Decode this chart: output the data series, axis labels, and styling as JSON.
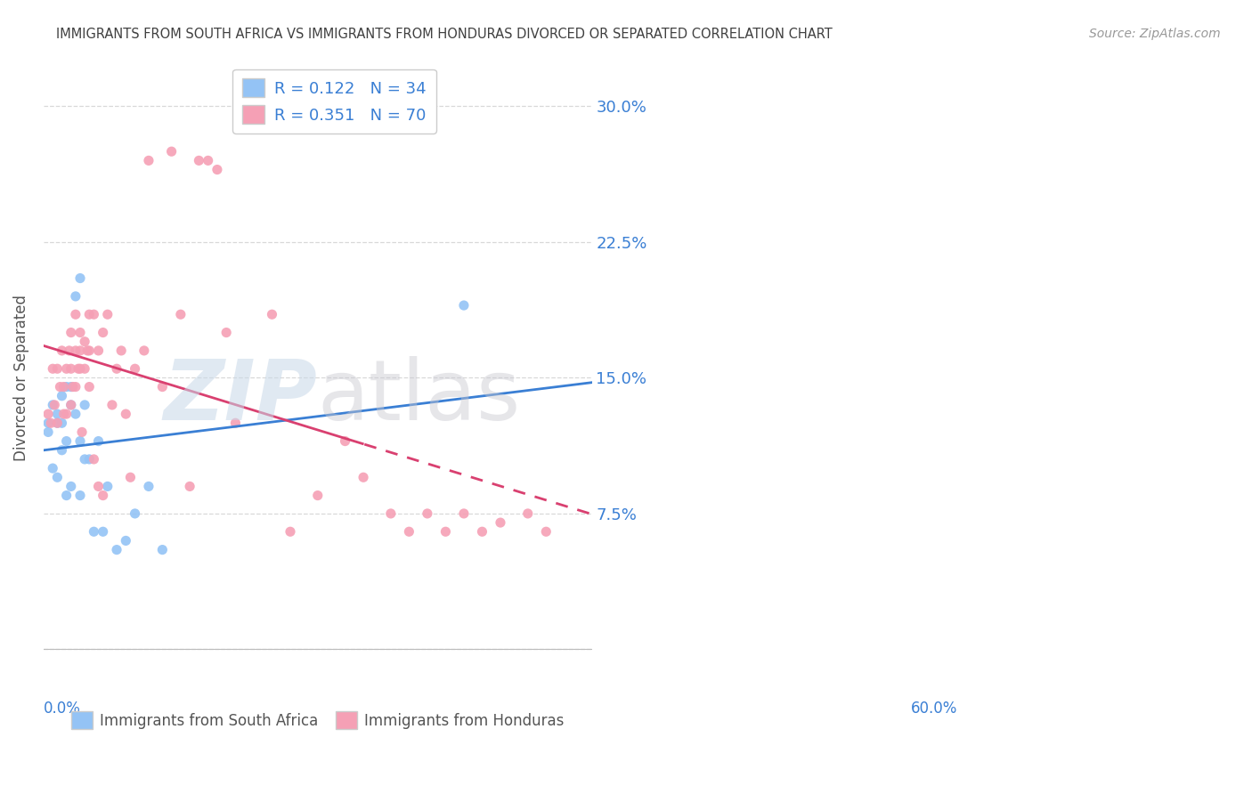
{
  "title": "IMMIGRANTS FROM SOUTH AFRICA VS IMMIGRANTS FROM HONDURAS DIVORCED OR SEPARATED CORRELATION CHART",
  "source": "Source: ZipAtlas.com",
  "ylabel": "Divorced or Separated",
  "xlim": [
    0.0,
    0.6
  ],
  "ylim": [
    -0.025,
    0.325
  ],
  "yticks": [
    0.0,
    0.075,
    0.15,
    0.225,
    0.3
  ],
  "ytick_labels": [
    "",
    "7.5%",
    "15.0%",
    "22.5%",
    "30.0%"
  ],
  "blue_R": 0.122,
  "blue_N": 34,
  "pink_R": 0.351,
  "pink_N": 70,
  "blue_color": "#94C3F5",
  "pink_color": "#F5A0B5",
  "blue_line_color": "#3A7FD4",
  "pink_line_color": "#D94070",
  "grid_color": "#D8D8D8",
  "title_color": "#404040",
  "source_color": "#999999",
  "accent_color": "#3A7FD4",
  "blue_scatter_x": [
    0.005,
    0.01,
    0.01,
    0.015,
    0.015,
    0.015,
    0.02,
    0.02,
    0.02,
    0.025,
    0.025,
    0.025,
    0.03,
    0.03,
    0.03,
    0.035,
    0.035,
    0.04,
    0.04,
    0.04,
    0.045,
    0.045,
    0.05,
    0.055,
    0.06,
    0.065,
    0.07,
    0.08,
    0.09,
    0.1,
    0.115,
    0.13,
    0.46,
    0.005
  ],
  "blue_scatter_y": [
    0.125,
    0.135,
    0.1,
    0.13,
    0.125,
    0.095,
    0.14,
    0.125,
    0.11,
    0.145,
    0.115,
    0.085,
    0.145,
    0.135,
    0.09,
    0.195,
    0.13,
    0.115,
    0.085,
    0.205,
    0.135,
    0.105,
    0.105,
    0.065,
    0.115,
    0.065,
    0.09,
    0.055,
    0.06,
    0.075,
    0.09,
    0.055,
    0.19,
    0.12
  ],
  "pink_scatter_x": [
    0.005,
    0.008,
    0.01,
    0.012,
    0.015,
    0.015,
    0.018,
    0.02,
    0.022,
    0.022,
    0.025,
    0.025,
    0.028,
    0.03,
    0.03,
    0.03,
    0.032,
    0.035,
    0.035,
    0.035,
    0.038,
    0.04,
    0.04,
    0.04,
    0.042,
    0.045,
    0.045,
    0.048,
    0.05,
    0.05,
    0.05,
    0.055,
    0.055,
    0.06,
    0.06,
    0.065,
    0.065,
    0.07,
    0.075,
    0.08,
    0.085,
    0.09,
    0.095,
    0.1,
    0.11,
    0.115,
    0.13,
    0.14,
    0.15,
    0.16,
    0.17,
    0.18,
    0.19,
    0.2,
    0.21,
    0.23,
    0.25,
    0.27,
    0.3,
    0.33,
    0.35,
    0.38,
    0.4,
    0.42,
    0.44,
    0.46,
    0.48,
    0.5,
    0.53,
    0.55
  ],
  "pink_scatter_y": [
    0.13,
    0.125,
    0.155,
    0.135,
    0.155,
    0.125,
    0.145,
    0.165,
    0.145,
    0.13,
    0.155,
    0.13,
    0.165,
    0.175,
    0.155,
    0.135,
    0.145,
    0.185,
    0.165,
    0.145,
    0.155,
    0.175,
    0.165,
    0.155,
    0.12,
    0.17,
    0.155,
    0.165,
    0.185,
    0.165,
    0.145,
    0.185,
    0.105,
    0.165,
    0.09,
    0.175,
    0.085,
    0.185,
    0.135,
    0.155,
    0.165,
    0.13,
    0.095,
    0.155,
    0.165,
    0.27,
    0.145,
    0.275,
    0.185,
    0.09,
    0.27,
    0.27,
    0.265,
    0.175,
    0.125,
    0.305,
    0.185,
    0.065,
    0.085,
    0.115,
    0.095,
    0.075,
    0.065,
    0.075,
    0.065,
    0.075,
    0.065,
    0.07,
    0.075,
    0.065
  ]
}
